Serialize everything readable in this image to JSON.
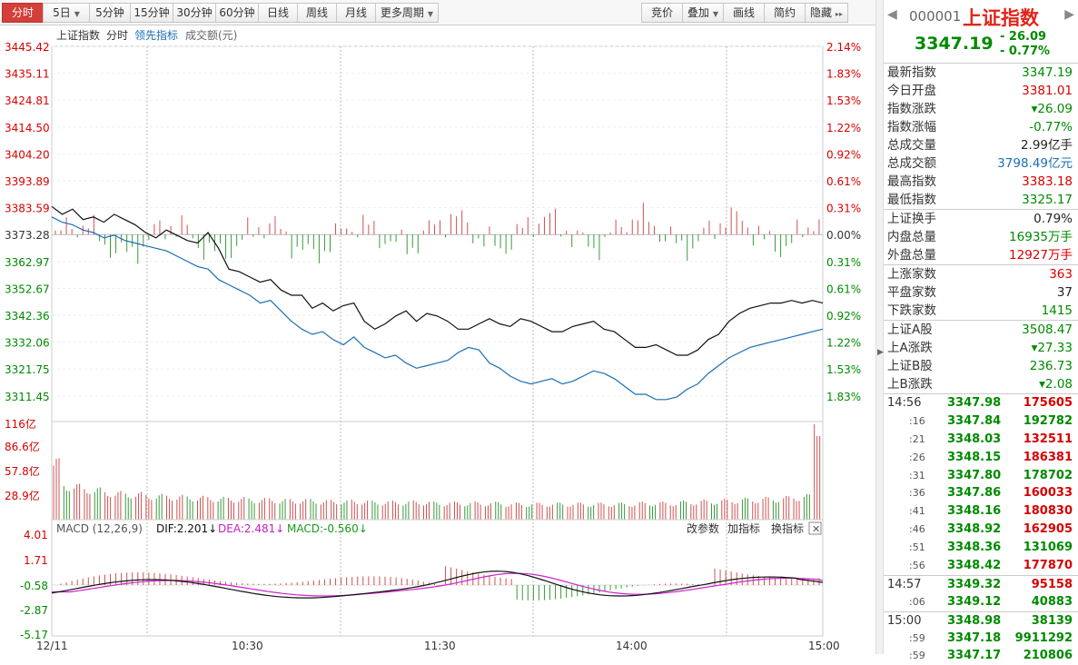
{
  "toolbar": {
    "tabs": [
      {
        "label": "分时",
        "active": true
      },
      {
        "label": "5日",
        "dropdown": true
      },
      {
        "label": "5分钟"
      },
      {
        "label": "15分钟"
      },
      {
        "label": "30分钟"
      },
      {
        "label": "60分钟"
      },
      {
        "label": "日线"
      },
      {
        "label": "周线"
      },
      {
        "label": "月线"
      },
      {
        "label": "更多周期",
        "dropdown": true
      }
    ],
    "right": [
      {
        "label": "竞价"
      },
      {
        "label": "叠加",
        "dropdown": true
      },
      {
        "label": "画线"
      },
      {
        "label": "简约"
      },
      {
        "label": "隐藏",
        "arrows": "▸▸"
      }
    ]
  },
  "chart": {
    "legend": {
      "name": "上证指数",
      "mode": "分时",
      "leading": "领先指标",
      "amount": "成交额(元)"
    },
    "price_ticks": [
      "3445.42",
      "3435.11",
      "3424.81",
      "3414.50",
      "3404.20",
      "3393.89",
      "3383.59",
      "3373.28",
      "3362.97",
      "3352.67",
      "3342.36",
      "3332.06",
      "3321.75",
      "3311.45"
    ],
    "pct_ticks": [
      "2.14%",
      "1.83%",
      "1.53%",
      "1.22%",
      "0.92%",
      "0.61%",
      "0.31%",
      "0.00%",
      "0.31%",
      "0.61%",
      "0.92%",
      "1.22%",
      "1.53%",
      "1.83%"
    ],
    "volume_ticks": [
      "116亿",
      "86.6亿",
      "57.8亿",
      "28.9亿"
    ],
    "macd": {
      "label": "MACD (12,26,9)",
      "dif": "DIF:2.201↓",
      "dea": "DEA:2.481↓",
      "macd": "MACD:-0.560↓",
      "buttons": [
        "改参数",
        "加指标",
        "换指标"
      ],
      "ticks": [
        "4.01",
        "1.71",
        "-0.58",
        "-2.87",
        "-5.17"
      ]
    },
    "time_labels": [
      "12/11",
      "10:30",
      "11:30",
      "14:00",
      "15:00"
    ]
  },
  "chart_data": {
    "type": "line",
    "prev_close": 3373.28,
    "ylim": [
      3307.0,
      3445.42
    ],
    "index_line": [
      3384,
      3381,
      3383,
      3379,
      3380,
      3378,
      3381,
      3379,
      3377,
      3374,
      3372,
      3375,
      3373,
      3371,
      3370,
      3374,
      3368,
      3360,
      3359,
      3357,
      3355,
      3356,
      3352,
      3350,
      3350,
      3345,
      3347,
      3344,
      3346,
      3347,
      3340,
      3337,
      3339,
      3342,
      3344,
      3340,
      3343,
      3342,
      3340,
      3337,
      3337,
      3339,
      3341,
      3339,
      3338,
      3341,
      3340,
      3338,
      3336,
      3336,
      3338,
      3339,
      3340,
      3337,
      3336,
      3333,
      3330,
      3330,
      3331,
      3329,
      3327,
      3327,
      3329,
      3333,
      3335,
      3340,
      3343,
      3345,
      3346,
      3347,
      3347,
      3348,
      3347,
      3348,
      3347
    ],
    "leading_line": [
      3380,
      3378,
      3377,
      3375,
      3374,
      3372,
      3373,
      3371,
      3370,
      3369,
      3368,
      3367,
      3365,
      3363,
      3361,
      3360,
      3356,
      3354,
      3352,
      3350,
      3347,
      3348,
      3344,
      3340,
      3337,
      3335,
      3336,
      3333,
      3331,
      3334,
      3330,
      3328,
      3326,
      3327,
      3324,
      3322,
      3323,
      3324,
      3325,
      3328,
      3330,
      3329,
      3324,
      3322,
      3319,
      3317,
      3316,
      3317,
      3318,
      3316,
      3317,
      3319,
      3321,
      3320,
      3318,
      3315,
      3312,
      3312,
      3310,
      3310,
      3311,
      3314,
      3316,
      3320,
      3323,
      3326,
      3328,
      3330,
      3331,
      3332,
      3333,
      3334,
      3335,
      3336,
      3337
    ],
    "volume_bars_yi": [
      65,
      40,
      38,
      36,
      34,
      32,
      30,
      30,
      29,
      28,
      27,
      27,
      26,
      26,
      25,
      25,
      24,
      24,
      24,
      23,
      23,
      23,
      22,
      22,
      22,
      22,
      21,
      21,
      21,
      21,
      21,
      20,
      20,
      20,
      20,
      20,
      20,
      19,
      19,
      19,
      19,
      19,
      19,
      19,
      18,
      18,
      18,
      18,
      18,
      18,
      18,
      18,
      18,
      18,
      18,
      18,
      18,
      19,
      19,
      19,
      19,
      20,
      20,
      21,
      21,
      22,
      22,
      23,
      23,
      24,
      24,
      25,
      26,
      27,
      116
    ],
    "macd_ylim": [
      -5.6,
      4.4
    ]
  },
  "panel": {
    "code": "000001",
    "name": "上证指数",
    "price": "3347.19",
    "change": "- 26.09",
    "change_pct": "- 0.77%",
    "stats": [
      {
        "label": "最新指数",
        "value": "3347.19",
        "color": "green"
      },
      {
        "label": "今日开盘",
        "value": "3381.01",
        "color": "red"
      },
      {
        "label": "指数涨跌",
        "value": "▾26.09",
        "color": "green"
      },
      {
        "label": "指数涨幅",
        "value": "-0.77%",
        "color": "green"
      },
      {
        "label": "总成交量",
        "value": "2.99亿手",
        "color": "dark"
      },
      {
        "label": "总成交额",
        "value": "3798.49亿元",
        "color": "blue"
      },
      {
        "label": "最高指数",
        "value": "3383.18",
        "color": "red"
      },
      {
        "label": "最低指数",
        "value": "3325.17",
        "color": "green"
      }
    ],
    "stats2": [
      {
        "label": "上证换手",
        "value": "0.79%",
        "color": "dark"
      },
      {
        "label": "内盘总量",
        "value": "16935万手",
        "color": "green"
      },
      {
        "label": "外盘总量",
        "value": "12927万手",
        "color": "red"
      }
    ],
    "stats3": [
      {
        "label": "上涨家数",
        "value": "363",
        "color": "red"
      },
      {
        "label": "平盘家数",
        "value": "37",
        "color": "dark"
      },
      {
        "label": "下跌家数",
        "value": "1415",
        "color": "green"
      }
    ],
    "stats4": [
      {
        "label": "上证A股",
        "value": "3508.47",
        "color": "green"
      },
      {
        "label": "上A涨跌",
        "value": "▾27.33",
        "color": "green"
      },
      {
        "label": "上证B股",
        "value": "236.73",
        "color": "green"
      },
      {
        "label": "上B涨跌",
        "value": "▾2.08",
        "color": "green"
      }
    ],
    "ticks": [
      {
        "time": "14:56",
        "sub": false,
        "price": "3347.98",
        "vol": "175605",
        "pc": "green",
        "vc": "red"
      },
      {
        "time": ":16",
        "sub": true,
        "price": "3347.84",
        "vol": "192782",
        "pc": "green",
        "vc": "green"
      },
      {
        "time": ":21",
        "sub": true,
        "price": "3348.03",
        "vol": "132511",
        "pc": "green",
        "vc": "red"
      },
      {
        "time": ":26",
        "sub": true,
        "price": "3348.15",
        "vol": "186381",
        "pc": "green",
        "vc": "red"
      },
      {
        "time": ":31",
        "sub": true,
        "price": "3347.80",
        "vol": "178702",
        "pc": "green",
        "vc": "green"
      },
      {
        "time": ":36",
        "sub": true,
        "price": "3347.86",
        "vol": "160033",
        "pc": "green",
        "vc": "red"
      },
      {
        "time": ":41",
        "sub": true,
        "price": "3348.16",
        "vol": "180830",
        "pc": "green",
        "vc": "red"
      },
      {
        "time": ":46",
        "sub": true,
        "price": "3348.92",
        "vol": "162905",
        "pc": "green",
        "vc": "red"
      },
      {
        "time": ":51",
        "sub": true,
        "price": "3348.36",
        "vol": "131069",
        "pc": "green",
        "vc": "green"
      },
      {
        "time": ":56",
        "sub": true,
        "price": "3348.42",
        "vol": "177870",
        "pc": "green",
        "vc": "red"
      },
      {
        "time": "14:57",
        "sub": false,
        "price": "3349.32",
        "vol": "95158",
        "pc": "green",
        "vc": "red",
        "sep": true
      },
      {
        "time": ":06",
        "sub": true,
        "price": "3349.12",
        "vol": "40883",
        "pc": "green",
        "vc": "green"
      },
      {
        "time": "15:00",
        "sub": false,
        "price": "3348.98",
        "vol": "38139",
        "pc": "green",
        "vc": "green",
        "sep": true
      },
      {
        "time": ":59",
        "sub": true,
        "price": "3347.18",
        "vol": "9911292",
        "pc": "green",
        "vc": "green"
      },
      {
        "time": ":59",
        "sub": true,
        "price": "3347.17",
        "vol": "210806",
        "pc": "green",
        "vc": "green"
      }
    ]
  }
}
